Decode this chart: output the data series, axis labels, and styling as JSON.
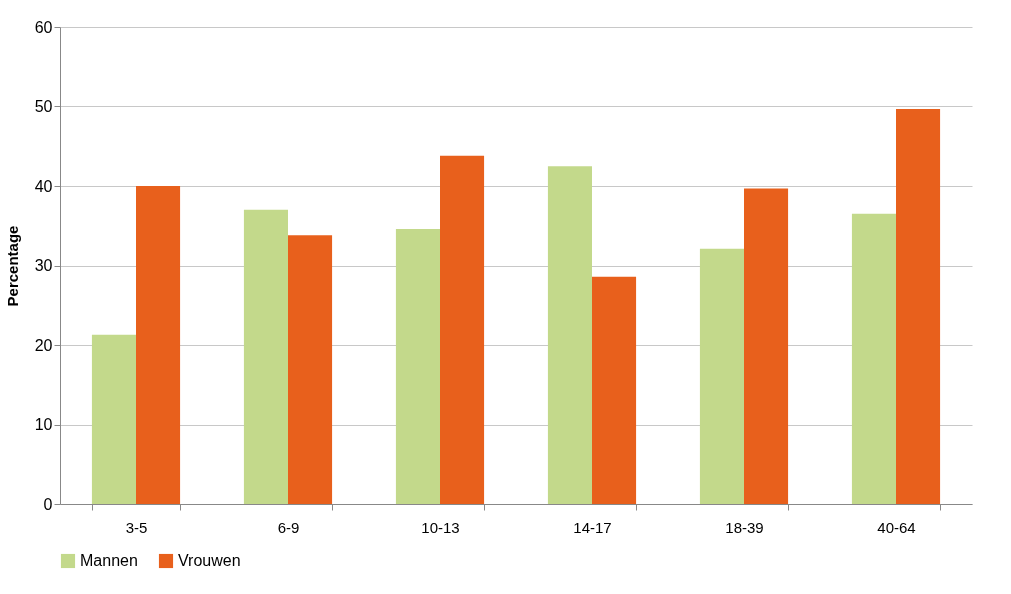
{
  "chart_data": {
    "type": "bar",
    "ylabel": "Percentage",
    "categories": [
      "3-5",
      "6-9",
      "10-13",
      "14-17",
      "18-39",
      "40-64"
    ],
    "series": [
      {
        "name": "Mannen",
        "color": "#c3d98b",
        "values": [
          21.3,
          37.0,
          34.6,
          42.5,
          32.1,
          36.5
        ]
      },
      {
        "name": "Vrouwen",
        "color": "#e8601c",
        "values": [
          40.0,
          33.8,
          43.8,
          28.6,
          39.7,
          49.7
        ]
      }
    ],
    "ylim": [
      0,
      60
    ],
    "yticks": [
      0,
      10,
      20,
      30,
      40,
      50,
      60
    ],
    "grid": "y",
    "legend": "bottom"
  }
}
